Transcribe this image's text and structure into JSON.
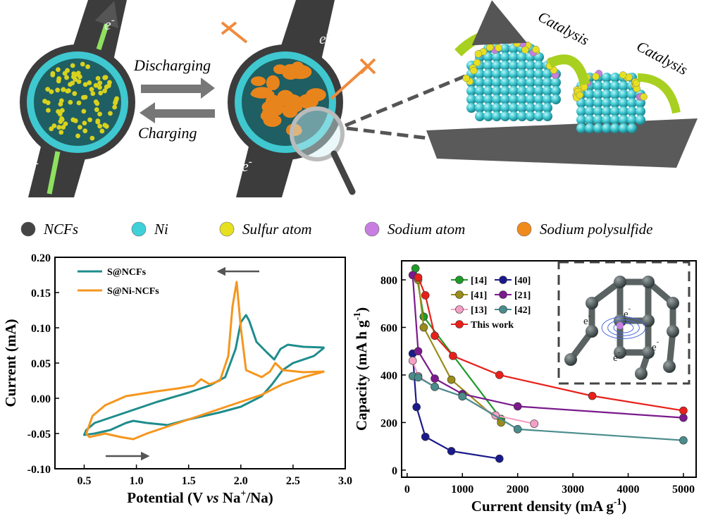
{
  "illustration": {
    "discharging": "Discharging",
    "charging": "Charging",
    "catalysis": [
      "Catalysis",
      "Catalysis"
    ],
    "electrons": [
      {
        "base": "e",
        "sup": "-"
      },
      {
        "base": "e",
        "sup": "-"
      },
      {
        "base": "e",
        "sup": "-"
      },
      {
        "base": "e",
        "sup": "-"
      }
    ]
  },
  "legend": [
    {
      "label": "NCFs",
      "color": "#444444"
    },
    {
      "label": "Ni",
      "color": "#3fd0d8"
    },
    {
      "label": "Sulfur atom",
      "color": "#e6e020"
    },
    {
      "label": "Sodium atom",
      "color": "#c77ee0"
    },
    {
      "label": "Sodium polysulfide",
      "color": "#f08a1c"
    }
  ],
  "inset": {
    "labels": [
      {
        "base": "e",
        "sup": "-"
      },
      {
        "base": "e",
        "sup": "-"
      },
      {
        "base": "e",
        "sup": "-"
      },
      {
        "base": "e",
        "sup": "-"
      }
    ]
  },
  "chart_data": [
    {
      "type": "line",
      "xlabel": [
        "Potential (V ",
        "vs",
        " Na",
        "+",
        "/Na)"
      ],
      "ylabel": "Current (mA)",
      "xlim": [
        0.22,
        3.0
      ],
      "ylim": [
        -0.1,
        0.2
      ],
      "xticks": [
        0.5,
        {
          "value": 1.0,
          "label": "1.0"
        },
        1.5,
        {
          "value": 2.0,
          "label": "2.0"
        },
        2.5,
        {
          "value": 3.0,
          "label": "3.0"
        }
      ],
      "yticks": [
        {
          "value": -0.1,
          "label": "-0.10"
        },
        {
          "value": -0.05,
          "label": "-0.05"
        },
        {
          "value": 0,
          "label": "0.00"
        },
        {
          "value": 0.05,
          "label": "0.05"
        },
        {
          "value": 0.1,
          "label": "0.10"
        },
        {
          "value": 0.15,
          "label": "0.15"
        },
        {
          "value": 0.2,
          "label": "0.20"
        }
      ],
      "series": [
        {
          "name": "S@NCFs",
          "color": "#1f8c8c",
          "x": [
            2.8,
            2.6,
            2.45,
            2.38,
            2.32,
            2.25,
            2.15,
            2.08,
            2.05,
            2.0,
            1.95,
            1.85,
            1.7,
            1.5,
            1.2,
            1.0,
            0.8,
            0.6,
            0.52,
            0.5,
            0.6,
            0.75,
            0.9,
            0.97,
            1.1,
            1.3,
            1.5,
            1.8,
            2.0,
            2.2,
            2.3,
            2.4,
            2.5,
            2.7,
            2.8
          ],
          "values": [
            0.072,
            0.073,
            0.076,
            0.07,
            0.055,
            0.065,
            0.08,
            0.11,
            0.118,
            0.108,
            0.07,
            0.03,
            0.018,
            0.008,
            -0.005,
            -0.015,
            -0.025,
            -0.035,
            -0.045,
            -0.052,
            -0.05,
            -0.045,
            -0.035,
            -0.032,
            -0.035,
            -0.038,
            -0.03,
            -0.02,
            -0.012,
            0.003,
            0.02,
            0.04,
            0.05,
            0.06,
            0.072
          ]
        },
        {
          "name": "S@Ni-NCFs",
          "color": "#f5961e",
          "x": [
            2.8,
            2.6,
            2.4,
            2.33,
            2.28,
            2.2,
            2.05,
            2.0,
            1.96,
            1.92,
            1.88,
            1.8,
            1.7,
            1.62,
            1.55,
            1.4,
            1.2,
            0.9,
            0.7,
            0.58,
            0.52,
            0.55,
            0.7,
            0.85,
            0.97,
            1.1,
            1.3,
            1.5,
            1.8,
            2.0,
            2.2,
            2.4,
            2.6,
            2.8
          ],
          "values": [
            0.038,
            0.037,
            0.04,
            0.05,
            0.038,
            0.03,
            0.04,
            0.1,
            0.165,
            0.13,
            0.06,
            0.025,
            0.02,
            0.027,
            0.018,
            0.014,
            0.01,
            0.003,
            -0.01,
            -0.025,
            -0.05,
            -0.055,
            -0.05,
            -0.055,
            -0.058,
            -0.05,
            -0.04,
            -0.03,
            -0.015,
            -0.005,
            0.005,
            0.02,
            0.03,
            0.038
          ]
        }
      ]
    },
    {
      "type": "line",
      "markers": true,
      "xlabel": [
        "Current density (mA g",
        "-1",
        ")"
      ],
      "ylabel": [
        "Capacity (mA h g",
        "-1",
        ")"
      ],
      "xlim": [
        -100,
        5230
      ],
      "ylim": [
        -30,
        880
      ],
      "xticks": [
        0,
        1000,
        2000,
        3000,
        4000,
        5000
      ],
      "yticks": [
        0,
        200,
        400,
        600,
        800
      ],
      "series": [
        {
          "name": "[14]",
          "color": "#1f9a2a",
          "x": [
            150,
            300,
            1700
          ],
          "values": [
            848,
            645,
            215
          ]
        },
        {
          "name": "[40]",
          "color": "#1a1a8c",
          "x": [
            100,
            170,
            330,
            800,
            1670
          ],
          "values": [
            490,
            265,
            140,
            80,
            48
          ]
        },
        {
          "name": "[41]",
          "color": "#9a8c1a",
          "x": [
            200,
            300,
            800,
            1700
          ],
          "values": [
            800,
            600,
            380,
            200
          ]
        },
        {
          "name": "[21]",
          "color": "#7a1a8c",
          "x": [
            100,
            200,
            500,
            1000,
            2000,
            5000
          ],
          "values": [
            820,
            500,
            385,
            320,
            268,
            220
          ]
        },
        {
          "name": "[13]",
          "color": "#f4a0c6",
          "x": [
            100,
            200,
            500,
            1000,
            1600,
            2300
          ],
          "values": [
            460,
            395,
            350,
            310,
            230,
            195
          ]
        },
        {
          "name": "[42]",
          "color": "#4a8c8c",
          "x": [
            100,
            200,
            500,
            1000,
            2000,
            5000
          ],
          "values": [
            395,
            390,
            350,
            310,
            172,
            125
          ]
        },
        {
          "name": "This work",
          "color": "#e8201a",
          "x": [
            200,
            330,
            500,
            830,
            1670,
            3350,
            5000
          ],
          "values": [
            810,
            735,
            565,
            480,
            400,
            312,
            250
          ]
        }
      ]
    }
  ]
}
